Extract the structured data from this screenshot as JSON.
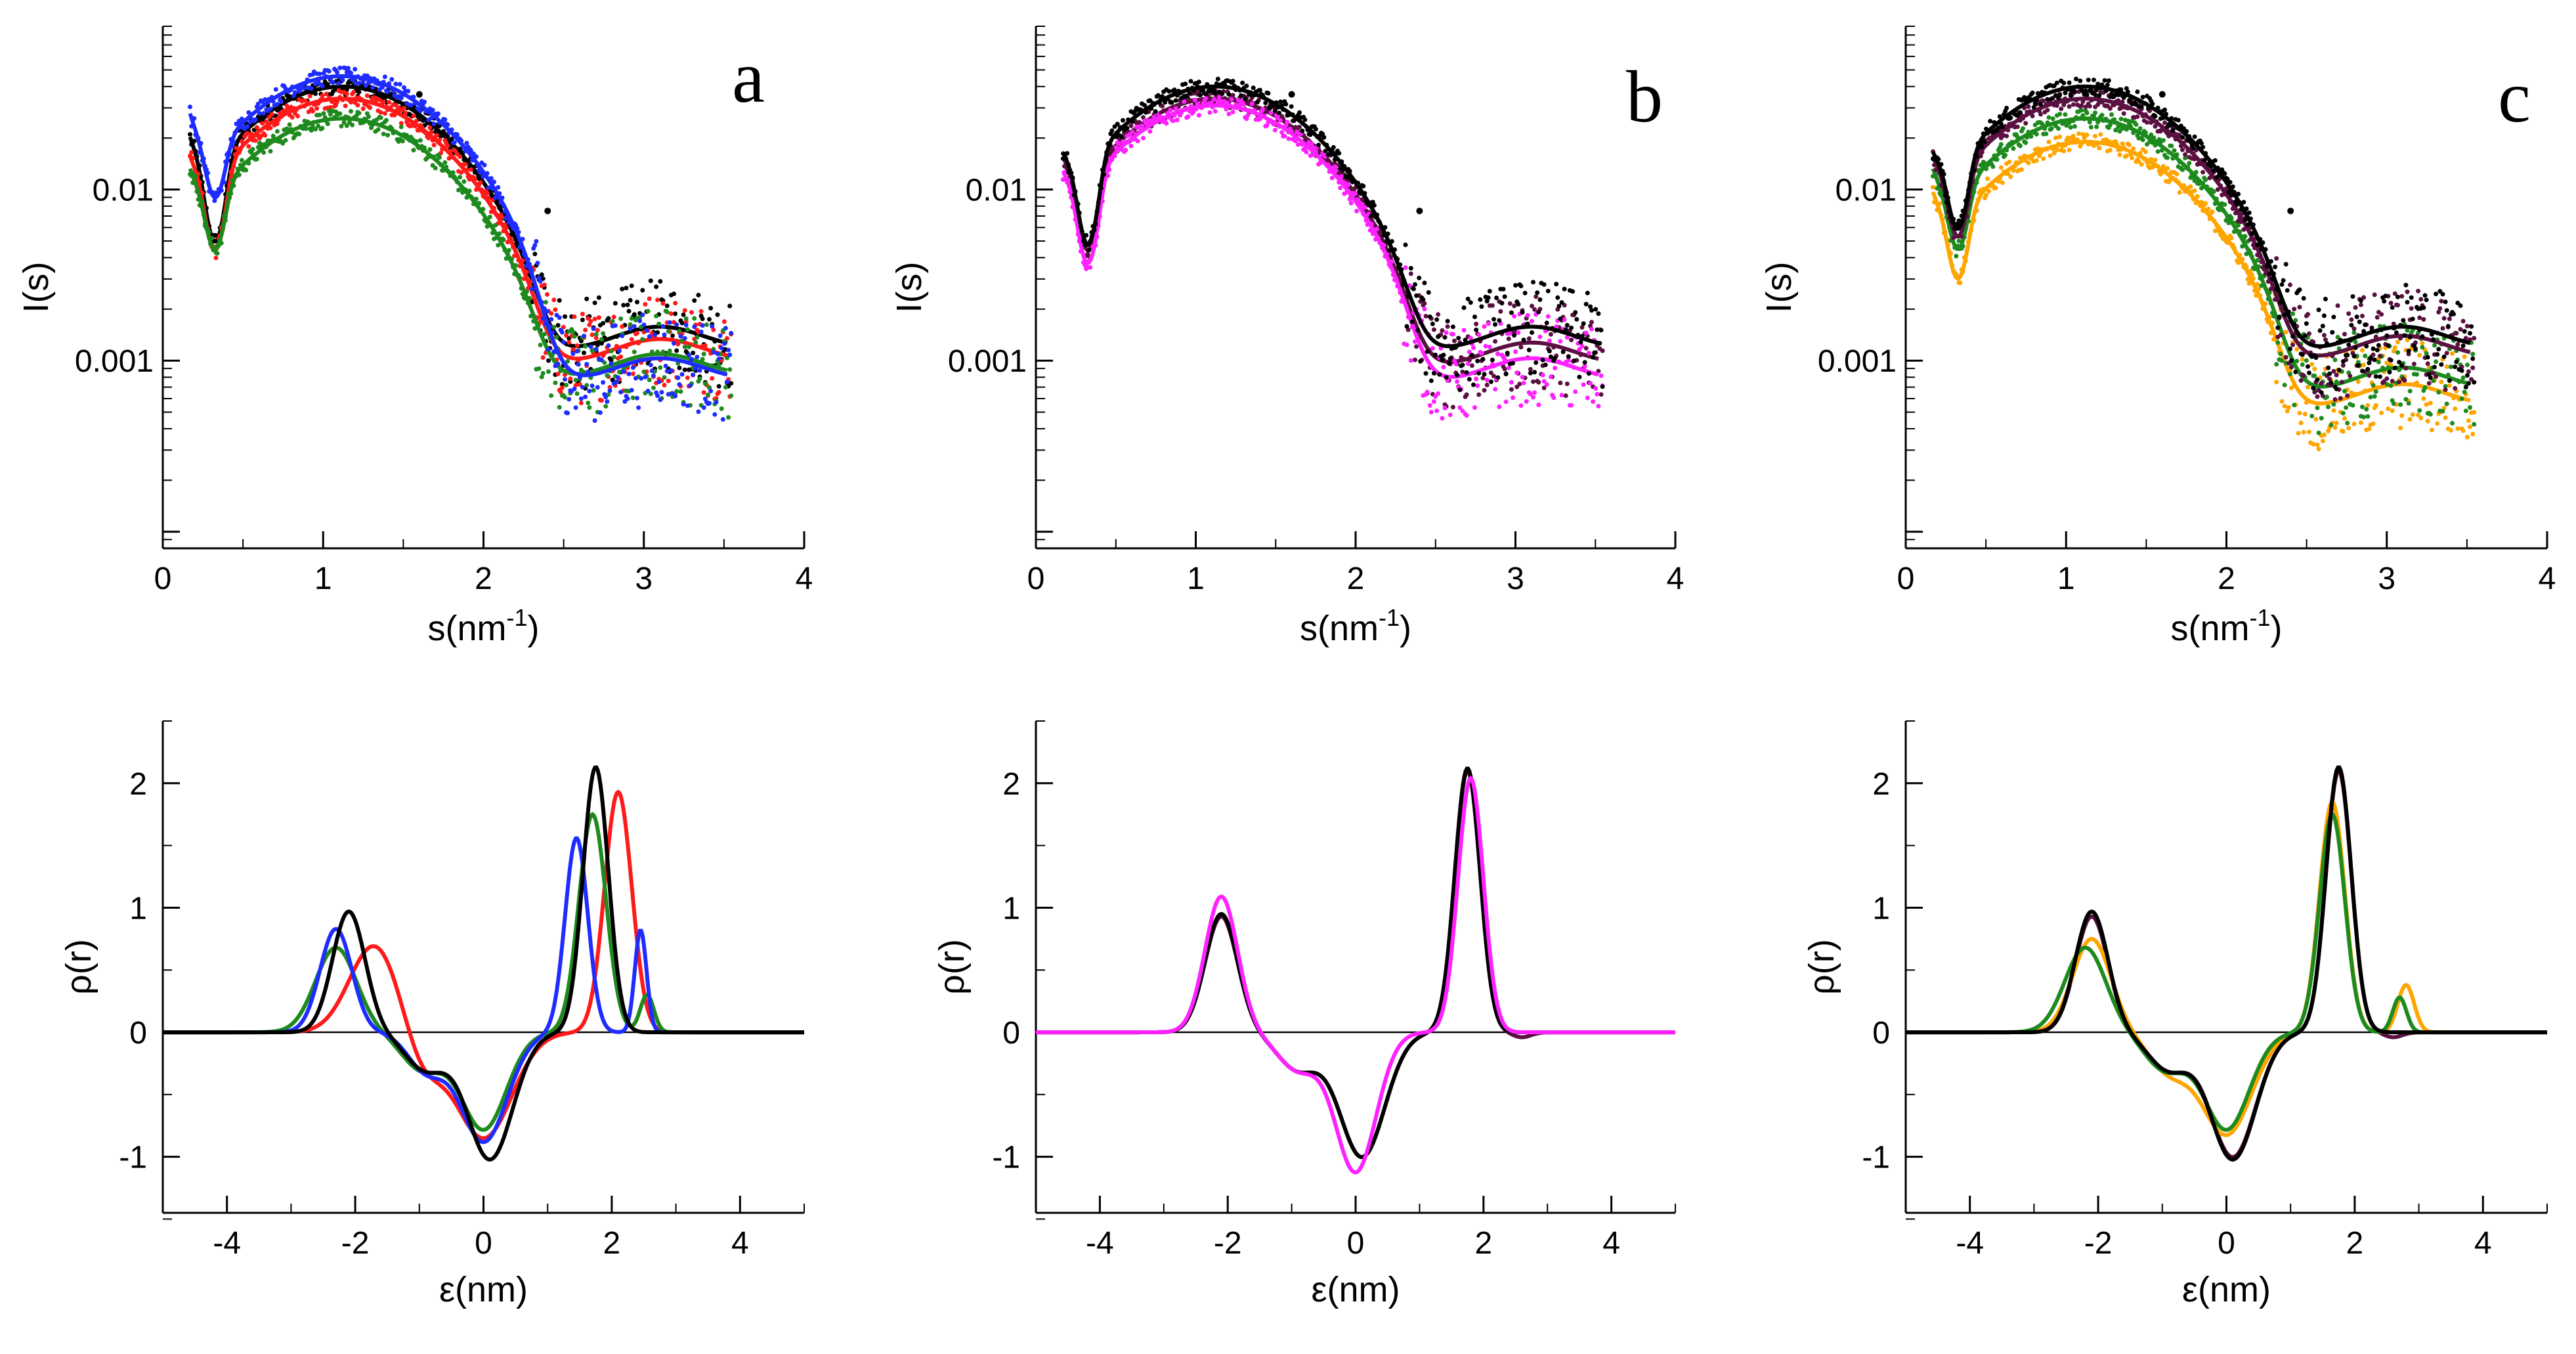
{
  "colors": {
    "black": "#000000",
    "red": "#ff1a1a",
    "green": "#1e8a1e",
    "blue": "#1f2cff",
    "magenta": "#ff22ff",
    "purple": "#5a1040",
    "orange": "#ffa500"
  },
  "chart_data": [
    {
      "panel": "a",
      "type": "scatter",
      "scale": "log",
      "xlabel": "s(nm",
      "xlabel_sup": "-1",
      "xlabel_tail": ")",
      "ylabel": "I(s)",
      "xlim": [
        0,
        4
      ],
      "ylim": [
        8e-05,
        0.09
      ],
      "xticks": [
        0,
        1,
        2,
        3,
        4
      ],
      "xtick_labels": [
        "0",
        "1",
        "2",
        "3",
        "4"
      ],
      "yticks": [
        0.01,
        0.001
      ],
      "ytick_labels": [
        "0.01",
        "0.001"
      ],
      "series": [
        {
          "name": "black",
          "color": "#000000",
          "scale": 0.04,
          "min_q": 0.0035,
          "min_depth": 2.2,
          "spike_amp": 0.6,
          "tail": 1.3
        },
        {
          "name": "red",
          "color": "#ff1a1a",
          "scale": 0.034,
          "min_q": 0.004,
          "min_depth": 2.0,
          "spike_amp": 0.5,
          "tail": 1.1
        },
        {
          "name": "green",
          "color": "#1e8a1e",
          "scale": 0.026,
          "min_q": 0.006,
          "min_depth": 1.3,
          "spike_amp": 0.6,
          "tail": 0.9
        },
        {
          "name": "blue",
          "color": "#1f2cff",
          "scale": 0.046,
          "min_q": 0.012,
          "min_depth": 1.1,
          "spike_amp": 0.8,
          "tail": 0.85
        }
      ]
    },
    {
      "panel": "b",
      "type": "scatter",
      "scale": "log",
      "xlabel": "s(nm",
      "xlabel_sup": "-1",
      "xlabel_tail": ")",
      "ylabel": "I(s)",
      "xlim": [
        0,
        4
      ],
      "ylim": [
        8e-05,
        0.09
      ],
      "xticks": [
        0,
        1,
        2,
        3,
        4
      ],
      "xtick_labels": [
        "0",
        "1",
        "2",
        "3",
        "4"
      ],
      "yticks": [
        0.01,
        0.001
      ],
      "ytick_labels": [
        "0.01",
        "0.001"
      ],
      "series": [
        {
          "name": "purple",
          "color": "#5a1040",
          "scale": 0.034,
          "min_q": 0.004,
          "min_depth": 2.0,
          "spike_amp": 0.5,
          "tail": 1.05
        },
        {
          "name": "magenta",
          "color": "#ff22ff",
          "scale": 0.031,
          "min_q": 0.0035,
          "min_depth": 2.2,
          "spike_amp": 0.4,
          "tail": 0.85
        },
        {
          "name": "black",
          "color": "#000000",
          "scale": 0.04,
          "min_q": 0.0035,
          "min_depth": 2.2,
          "spike_amp": 0.4,
          "tail": 1.3
        }
      ]
    },
    {
      "panel": "c",
      "type": "scatter",
      "scale": "log",
      "xlabel": "s(nm",
      "xlabel_sup": "-1",
      "xlabel_tail": ")",
      "ylabel": "I(s)",
      "xlim": [
        0,
        4
      ],
      "ylim": [
        8e-05,
        0.09
      ],
      "xticks": [
        0,
        1,
        2,
        3,
        4
      ],
      "xtick_labels": [
        "0",
        "1",
        "2",
        "3",
        "4"
      ],
      "yticks": [
        0.01,
        0.001
      ],
      "ytick_labels": [
        "0.01",
        "0.001"
      ],
      "series": [
        {
          "name": "orange",
          "color": "#ffa500",
          "scale": 0.019,
          "min_q": 0.0055,
          "min_depth": 1.5,
          "spike_amp": 0.6,
          "tail": 0.6
        },
        {
          "name": "green",
          "color": "#1e8a1e",
          "scale": 0.026,
          "min_q": 0.006,
          "min_depth": 1.3,
          "spike_amp": 0.6,
          "tail": 0.75
        },
        {
          "name": "purple",
          "color": "#5a1040",
          "scale": 0.034,
          "min_q": 0.0055,
          "min_depth": 1.5,
          "spike_amp": 0.5,
          "tail": 1.15
        },
        {
          "name": "black",
          "color": "#000000",
          "scale": 0.04,
          "min_q": 0.0055,
          "min_depth": 1.6,
          "spike_amp": 0.4,
          "tail": 1.3
        }
      ]
    },
    {
      "panel": "a-profile",
      "type": "line",
      "xlabel": "ε(nm)",
      "ylabel": "ρ(r)",
      "xlim": [
        -5,
        5
      ],
      "ylim": [
        -1.45,
        2.5
      ],
      "xticks": [
        -4,
        -2,
        0,
        2,
        4
      ],
      "xtick_labels": [
        "-4",
        "-2",
        "0",
        "2",
        "4"
      ],
      "yticks": [
        -1,
        0,
        1,
        2
      ],
      "ytick_labels": [
        "-1",
        "0",
        "1",
        "2"
      ],
      "series": [
        {
          "name": "red",
          "color": "#ff1a1a",
          "peaks": [
            [
              -1.7,
              0.7,
              0.55
            ],
            [
              -0.95,
              -0.3,
              0.4
            ],
            [
              0.0,
              -0.85,
              0.62
            ],
            [
              2.1,
              1.93,
              0.3
            ]
          ]
        },
        {
          "name": "green",
          "color": "#1e8a1e",
          "peaks": [
            [
              -2.3,
              0.68,
              0.45
            ],
            [
              -0.95,
              -0.3,
              0.45
            ],
            [
              0.0,
              -0.78,
              0.5
            ],
            [
              1.7,
              1.75,
              0.3
            ],
            [
              2.55,
              0.3,
              0.15
            ]
          ]
        },
        {
          "name": "blue",
          "color": "#1f2cff",
          "peaks": [
            [
              -2.3,
              0.83,
              0.35
            ],
            [
              -0.9,
              -0.3,
              0.4
            ],
            [
              0.0,
              -0.88,
              0.52
            ],
            [
              1.45,
              1.56,
              0.25
            ],
            [
              2.45,
              0.82,
              0.13
            ]
          ]
        },
        {
          "name": "black",
          "color": "#000000",
          "peaks": [
            [
              -2.1,
              0.97,
              0.36
            ],
            [
              -0.9,
              -0.3,
              0.45
            ],
            [
              0.1,
              -1.02,
              0.5
            ],
            [
              1.75,
              2.13,
              0.28
            ]
          ]
        }
      ]
    },
    {
      "panel": "b-profile",
      "type": "line",
      "xlabel": "ε(nm)",
      "ylabel": "ρ(r)",
      "xlim": [
        -5,
        5
      ],
      "ylim": [
        -1.45,
        2.5
      ],
      "xticks": [
        -4,
        -2,
        0,
        2,
        4
      ],
      "xtick_labels": [
        "-4",
        "-2",
        "0",
        "2",
        "4"
      ],
      "yticks": [
        -1,
        0,
        1,
        2
      ],
      "ytick_labels": [
        "-1",
        "0",
        "1",
        "2"
      ],
      "series": [
        {
          "name": "purple",
          "color": "#5a1040",
          "peaks": [
            [
              -2.1,
              0.93,
              0.36
            ],
            [
              -0.9,
              -0.3,
              0.45
            ],
            [
              0.1,
              -1.0,
              0.5
            ],
            [
              1.75,
              2.1,
              0.28
            ],
            [
              2.6,
              -0.04,
              0.2
            ]
          ]
        },
        {
          "name": "black",
          "color": "#000000",
          "peaks": [
            [
              -2.1,
              0.95,
              0.36
            ],
            [
              -0.9,
              -0.3,
              0.45
            ],
            [
              0.1,
              -1.0,
              0.5
            ],
            [
              1.75,
              2.12,
              0.28
            ]
          ]
        },
        {
          "name": "magenta",
          "color": "#ff22ff",
          "peaks": [
            [
              -2.1,
              1.09,
              0.36
            ],
            [
              -0.9,
              -0.3,
              0.45
            ],
            [
              0.0,
              -1.12,
              0.45
            ],
            [
              1.8,
              2.04,
              0.28
            ]
          ]
        }
      ]
    },
    {
      "panel": "c-profile",
      "type": "line",
      "xlabel": "ε(nm)",
      "ylabel": "ρ(r)",
      "xlim": [
        -5,
        5
      ],
      "ylim": [
        -1.45,
        2.5
      ],
      "xticks": [
        -4,
        -2,
        0,
        2,
        4
      ],
      "xtick_labels": [
        "-4",
        "-2",
        "0",
        "2",
        "4"
      ],
      "yticks": [
        -1,
        0,
        1,
        2
      ],
      "ytick_labels": [
        "-1",
        "0",
        "1",
        "2"
      ],
      "series": [
        {
          "name": "purple",
          "color": "#5a1040",
          "peaks": [
            [
              -2.1,
              0.93,
              0.36
            ],
            [
              -0.9,
              -0.3,
              0.45
            ],
            [
              0.1,
              -1.0,
              0.5
            ],
            [
              1.75,
              2.1,
              0.28
            ],
            [
              2.6,
              -0.04,
              0.2
            ]
          ]
        },
        {
          "name": "orange",
          "color": "#ffa500",
          "peaks": [
            [
              -2.1,
              0.75,
              0.42
            ],
            [
              -0.9,
              -0.3,
              0.45
            ],
            [
              0.0,
              -0.82,
              0.55
            ],
            [
              1.65,
              1.85,
              0.28
            ],
            [
              2.8,
              0.38,
              0.18
            ]
          ]
        },
        {
          "name": "green",
          "color": "#1e8a1e",
          "peaks": [
            [
              -2.2,
              0.68,
              0.45
            ],
            [
              -0.95,
              -0.3,
              0.45
            ],
            [
              0.0,
              -0.78,
              0.5
            ],
            [
              1.65,
              1.75,
              0.28
            ],
            [
              2.7,
              0.28,
              0.15
            ]
          ]
        },
        {
          "name": "black",
          "color": "#000000",
          "peaks": [
            [
              -2.1,
              0.97,
              0.36
            ],
            [
              -0.9,
              -0.3,
              0.45
            ],
            [
              0.1,
              -1.02,
              0.5
            ],
            [
              1.75,
              2.13,
              0.28
            ]
          ]
        }
      ]
    }
  ],
  "panel_letters": [
    "a",
    "b",
    "c"
  ]
}
